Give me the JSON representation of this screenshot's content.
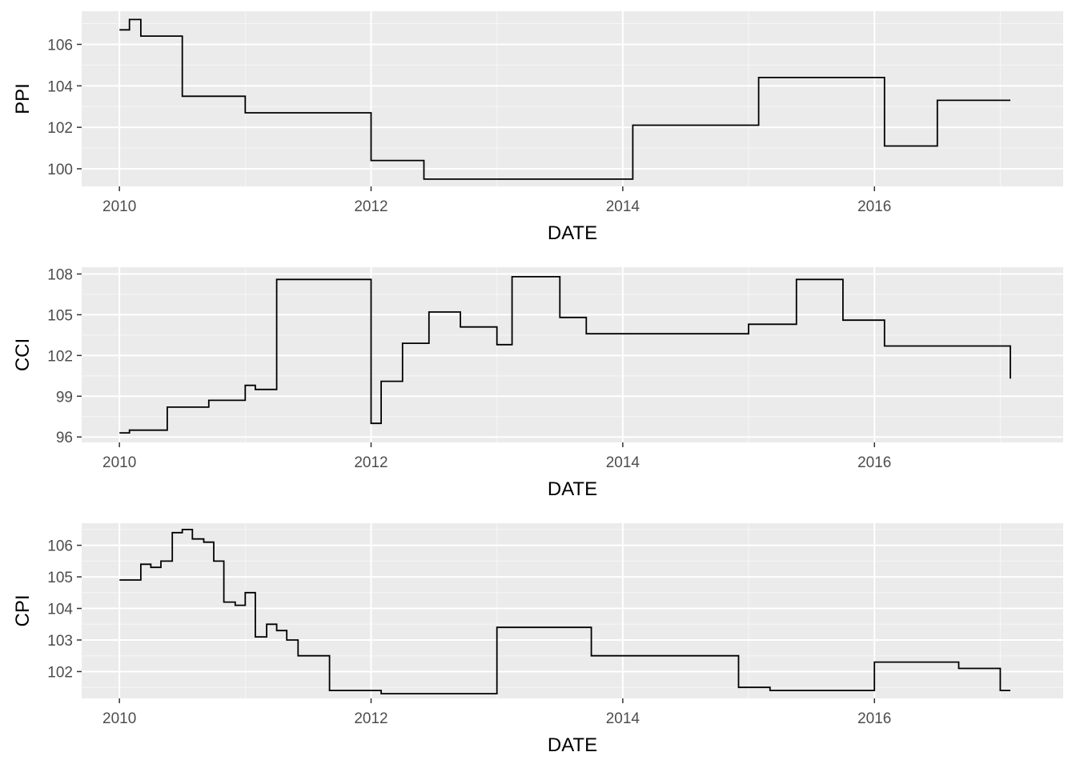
{
  "chart_data": [
    {
      "type": "line",
      "step": "hv",
      "xlabel": "DATE",
      "ylabel": "PPI",
      "xlim": [
        2009.7,
        2017.5
      ],
      "ylim": [
        99.15,
        107.6
      ],
      "x_ticks": [
        2010,
        2012,
        2014,
        2016
      ],
      "x_tick_labels": [
        "2010",
        "2012",
        "2014",
        "2016"
      ],
      "y_ticks": [
        100,
        102,
        104,
        106
      ],
      "y_tick_labels": [
        "100",
        "102",
        "104",
        "106"
      ],
      "grid": true,
      "series": [
        {
          "x": [
            2010.0,
            2010.08,
            2010.17,
            2010.42,
            2010.5,
            2010.92,
            2011.0,
            2011.92,
            2012.0,
            2012.33,
            2012.42,
            2013.0,
            2014.0,
            2014.08,
            2014.5,
            2015.0,
            2015.08,
            2016.0,
            2016.08,
            2016.42,
            2016.5,
            2017.0,
            2017.08
          ],
          "y": [
            106.7,
            107.2,
            106.4,
            106.4,
            103.5,
            103.5,
            102.7,
            102.7,
            100.4,
            100.4,
            99.5,
            99.5,
            99.5,
            102.1,
            102.1,
            102.1,
            104.4,
            104.4,
            101.1,
            101.1,
            103.3,
            103.3,
            103.3
          ]
        }
      ]
    },
    {
      "type": "line",
      "step": "hv",
      "xlabel": "DATE",
      "ylabel": "CCI",
      "xlim": [
        2009.7,
        2017.5
      ],
      "ylim": [
        95.6,
        108.5
      ],
      "x_ticks": [
        2010,
        2012,
        2014,
        2016
      ],
      "x_tick_labels": [
        "2010",
        "2012",
        "2014",
        "2016"
      ],
      "y_ticks": [
        96,
        99,
        102,
        105,
        108
      ],
      "y_tick_labels": [
        "96",
        "99",
        "102",
        "105",
        "108"
      ],
      "grid": true,
      "series": [
        {
          "x": [
            2010.0,
            2010.08,
            2010.38,
            2010.71,
            2011.0,
            2011.08,
            2011.25,
            2011.88,
            2012.0,
            2012.08,
            2012.25,
            2012.46,
            2012.71,
            2013.0,
            2013.12,
            2013.5,
            2013.71,
            2014.0,
            2015.0,
            2015.38,
            2015.75,
            2016.0,
            2016.08,
            2016.5,
            2017.0,
            2017.08
          ],
          "y": [
            96.3,
            96.5,
            98.2,
            98.7,
            99.8,
            99.5,
            107.6,
            107.6,
            97.0,
            100.1,
            102.9,
            105.2,
            104.1,
            102.8,
            107.8,
            104.8,
            103.6,
            103.6,
            104.3,
            107.6,
            104.6,
            104.6,
            102.7,
            102.7,
            102.7,
            100.3
          ]
        }
      ]
    },
    {
      "type": "line",
      "step": "hv",
      "xlabel": "DATE",
      "ylabel": "CPI",
      "xlim": [
        2009.7,
        2017.5
      ],
      "ylim": [
        101.15,
        106.7
      ],
      "x_ticks": [
        2010,
        2012,
        2014,
        2016
      ],
      "x_tick_labels": [
        "2010",
        "2012",
        "2014",
        "2016"
      ],
      "y_ticks": [
        102,
        103,
        104,
        105,
        106
      ],
      "y_tick_labels": [
        "102",
        "103",
        "104",
        "105",
        "106"
      ],
      "grid": true,
      "series": [
        {
          "x": [
            2010.0,
            2010.08,
            2010.17,
            2010.25,
            2010.33,
            2010.42,
            2010.5,
            2010.58,
            2010.67,
            2010.75,
            2010.83,
            2010.92,
            2011.0,
            2011.08,
            2011.17,
            2011.25,
            2011.33,
            2011.42,
            2011.5,
            2011.58,
            2011.67,
            2012.0,
            2012.08,
            2012.5,
            2013.0,
            2013.5,
            2013.75,
            2014.0,
            2014.5,
            2014.92,
            2015.0,
            2015.17,
            2016.0,
            2016.5,
            2016.67,
            2016.92,
            2017.0,
            2017.08
          ],
          "y": [
            104.9,
            104.9,
            105.4,
            105.3,
            105.5,
            106.4,
            106.5,
            106.2,
            106.1,
            105.5,
            104.2,
            104.1,
            104.5,
            103.1,
            103.5,
            103.3,
            103.0,
            102.5,
            102.5,
            102.5,
            101.4,
            101.4,
            101.3,
            101.3,
            103.4,
            103.4,
            102.5,
            102.5,
            102.5,
            101.5,
            101.5,
            101.4,
            102.3,
            102.3,
            102.1,
            102.1,
            101.4,
            101.4
          ]
        }
      ]
    }
  ]
}
